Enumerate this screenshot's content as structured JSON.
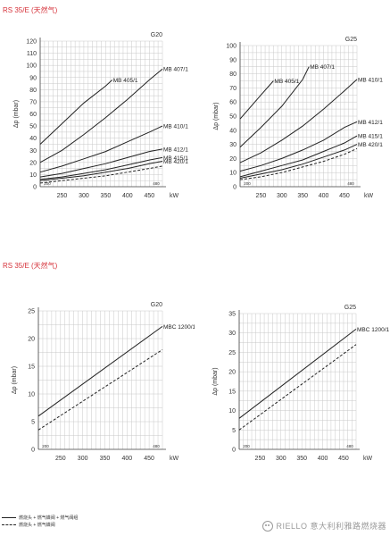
{
  "sections": [
    {
      "title": "RS 35/E (天然气)"
    },
    {
      "title": "RS 35/E (天然气)"
    }
  ],
  "legend": {
    "solid_label": "燃烧头 + 燃气蝶阀 + 燃气阀组",
    "dashed_label": "燃烧头 + 燃气蝶阀"
  },
  "watermark": "RIELLO 意大利利雅路燃烧器",
  "colors": {
    "accent": "#d6333b",
    "line": "#222222",
    "grid": "#c8c8c8"
  },
  "chart_data": [
    {
      "type": "line",
      "gas": "G20",
      "ylabel": "Δp (mbar)",
      "xunit": "kW",
      "xlim": [
        200,
        480
      ],
      "x_marks": [
        "200",
        "480"
      ],
      "xticks": [
        250,
        300,
        350,
        400,
        450
      ],
      "ylim": [
        0,
        120
      ],
      "yticks": [
        0,
        10,
        20,
        30,
        40,
        50,
        60,
        70,
        80,
        90,
        100,
        110,
        120
      ],
      "grid": true,
      "series": [
        {
          "name": "MB 405/1",
          "style": "solid",
          "x": [
            200,
            250,
            300,
            350,
            365
          ],
          "y": [
            35,
            52,
            69,
            83,
            88
          ]
        },
        {
          "name": "MB 407/1",
          "style": "solid",
          "x": [
            200,
            250,
            300,
            350,
            400,
            450,
            480
          ],
          "y": [
            20,
            30,
            43,
            57,
            72,
            88,
            97
          ]
        },
        {
          "name": "MB 410/1",
          "style": "solid",
          "x": [
            200,
            250,
            300,
            350,
            400,
            450,
            480
          ],
          "y": [
            12,
            17,
            23,
            29,
            37,
            45,
            50
          ]
        },
        {
          "name": "MB 412/1",
          "style": "solid",
          "x": [
            200,
            250,
            300,
            350,
            400,
            450,
            480
          ],
          "y": [
            8,
            11,
            15,
            19,
            24,
            29,
            31
          ]
        },
        {
          "name": "MB 415/1",
          "style": "solid",
          "x": [
            200,
            250,
            300,
            350,
            400,
            450,
            480
          ],
          "y": [
            6,
            8,
            11,
            14,
            18,
            22,
            24
          ]
        },
        {
          "name": "MB 420/1",
          "style": "solid",
          "x": [
            200,
            250,
            300,
            350,
            400,
            450,
            480
          ],
          "y": [
            5,
            7,
            9,
            12,
            15,
            19,
            21
          ]
        },
        {
          "name": "",
          "style": "dashed",
          "x": [
            200,
            250,
            300,
            350,
            400,
            450,
            480
          ],
          "y": [
            3,
            5,
            7,
            9,
            12,
            15,
            17
          ]
        }
      ]
    },
    {
      "type": "line",
      "gas": "G25",
      "ylabel": "Δp (mbar)",
      "xunit": "kW",
      "xlim": [
        200,
        480
      ],
      "x_marks": [
        "200",
        "480"
      ],
      "xticks": [
        250,
        300,
        350,
        400,
        450
      ],
      "ylim": [
        0,
        100
      ],
      "yticks": [
        0,
        10,
        20,
        30,
        40,
        50,
        60,
        70,
        80,
        90,
        100
      ],
      "grid": true,
      "series": [
        {
          "name": "MB 405/1",
          "style": "solid",
          "x": [
            200,
            250,
            280
          ],
          "y": [
            48,
            65,
            75
          ]
        },
        {
          "name": "MB 407/1",
          "style": "solid",
          "x": [
            200,
            250,
            300,
            350,
            365
          ],
          "y": [
            28,
            42,
            57,
            76,
            85
          ]
        },
        {
          "name": "MB 410/1",
          "style": "solid",
          "x": [
            200,
            250,
            300,
            350,
            400,
            450,
            480
          ],
          "y": [
            17,
            24,
            33,
            43,
            55,
            68,
            76
          ]
        },
        {
          "name": "MB 412/1",
          "style": "solid",
          "x": [
            200,
            250,
            300,
            350,
            400,
            450,
            480
          ],
          "y": [
            11,
            15,
            20,
            26,
            33,
            42,
            46
          ]
        },
        {
          "name": "MB 415/1",
          "style": "solid",
          "x": [
            200,
            250,
            300,
            350,
            400,
            450,
            480
          ],
          "y": [
            7,
            11,
            15,
            19,
            25,
            31,
            36
          ]
        },
        {
          "name": "MB 420/1",
          "style": "solid",
          "x": [
            200,
            250,
            300,
            350,
            400,
            450,
            480
          ],
          "y": [
            6,
            9,
            12,
            16,
            21,
            26,
            30
          ]
        },
        {
          "name": "",
          "style": "dashed",
          "x": [
            200,
            250,
            300,
            350,
            400,
            450,
            480
          ],
          "y": [
            5,
            7,
            10,
            14,
            18,
            23,
            27
          ]
        }
      ]
    },
    {
      "type": "line",
      "gas": "G20",
      "ylabel": "Δp (mbar)",
      "xunit": "kW",
      "xlim": [
        200,
        480
      ],
      "x_marks": [
        "200",
        "480"
      ],
      "xticks": [
        250,
        300,
        350,
        400,
        450
      ],
      "ylim": [
        0,
        25
      ],
      "yticks": [
        0,
        5,
        10,
        15,
        20,
        25
      ],
      "grid": true,
      "series": [
        {
          "name": "MBC 1200/1",
          "style": "solid",
          "x": [
            200,
            480
          ],
          "y": [
            6,
            22.2
          ]
        },
        {
          "name": "",
          "style": "dashed",
          "x": [
            200,
            480
          ],
          "y": [
            3.5,
            18
          ]
        }
      ]
    },
    {
      "type": "line",
      "gas": "G25",
      "ylabel": "Δp (mbar)",
      "xunit": "kW",
      "xlim": [
        200,
        480
      ],
      "x_marks": [
        "200",
        "480"
      ],
      "xticks": [
        250,
        300,
        350,
        400,
        450
      ],
      "ylim": [
        0,
        35
      ],
      "yticks": [
        0,
        5,
        10,
        15,
        20,
        25,
        30,
        35
      ],
      "grid": true,
      "series": [
        {
          "name": "MBC 1200/1",
          "style": "solid",
          "x": [
            200,
            480
          ],
          "y": [
            8,
            31
          ]
        },
        {
          "name": "",
          "style": "dashed",
          "x": [
            200,
            480
          ],
          "y": [
            5,
            27
          ]
        }
      ]
    }
  ]
}
